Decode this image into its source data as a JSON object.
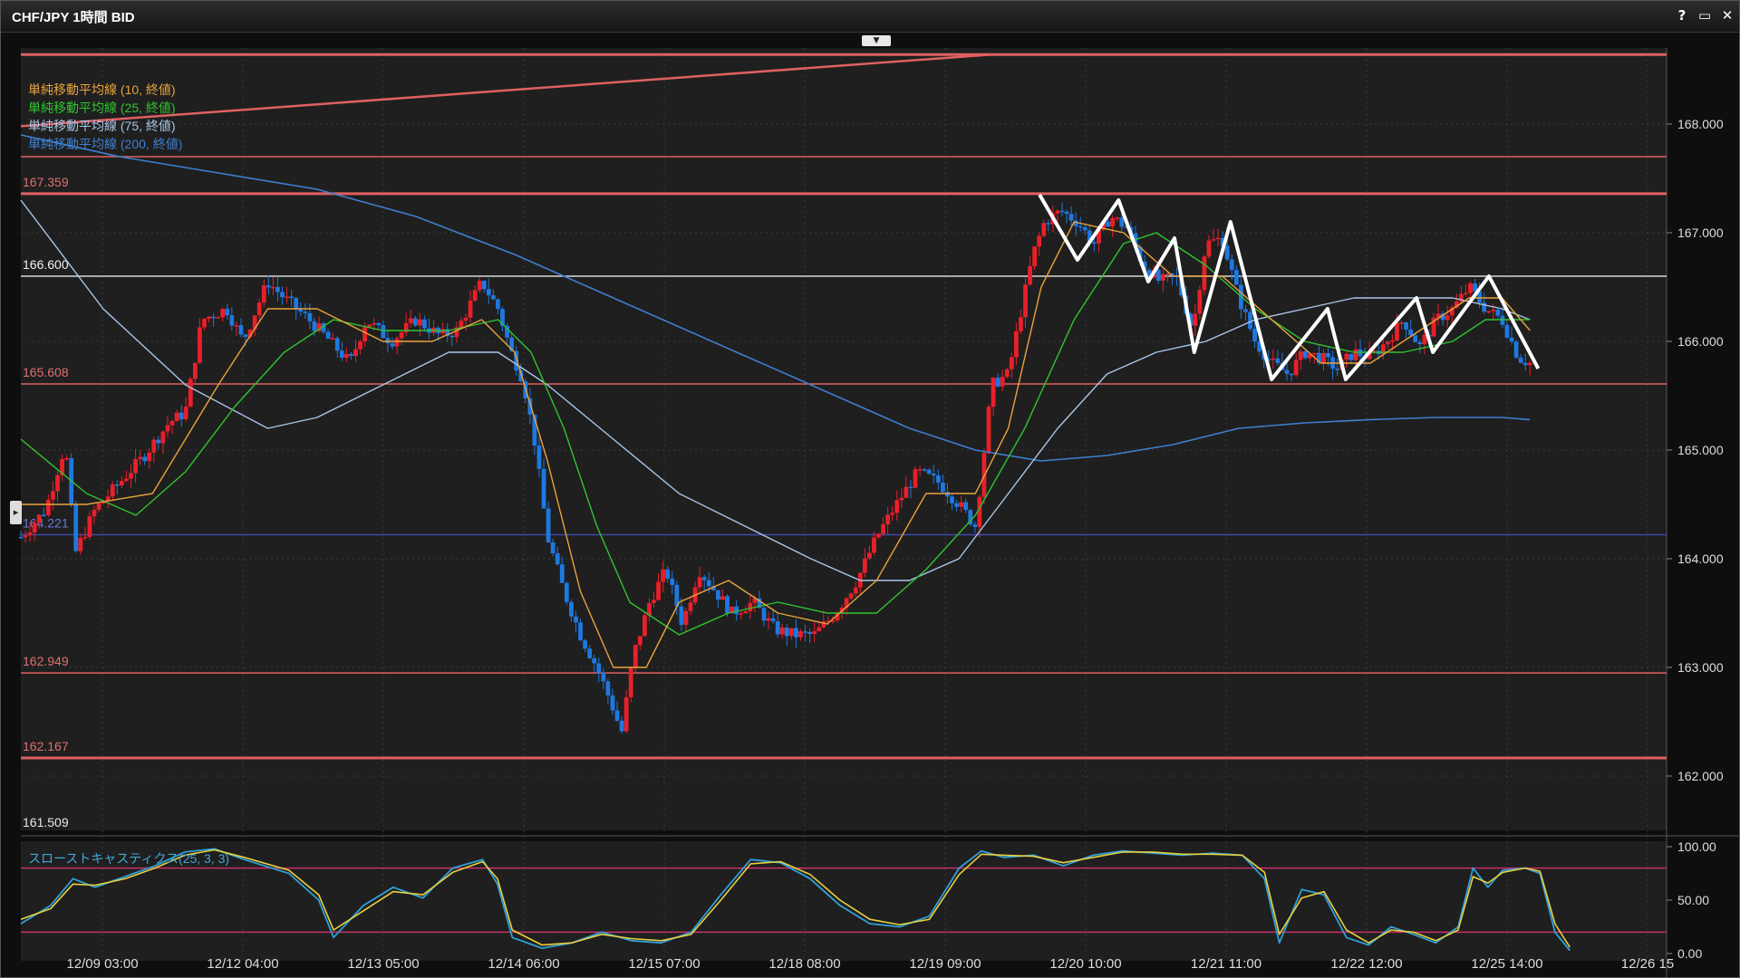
{
  "window": {
    "title": "CHF/JPY 1時間 BID",
    "help_label": "?",
    "maximize_label": "▭",
    "close_label": "✕"
  },
  "legend": [
    {
      "label": "単純移動平均線 (10, 終値)",
      "color": "#e8a33c"
    },
    {
      "label": "単純移動平均線 (25, 終値)",
      "color": "#2fc42f"
    },
    {
      "label": "単純移動平均線 (75, 終値)",
      "color": "#a9c6e8"
    },
    {
      "label": "単純移動平均線 (200, 終値)",
      "color": "#3f7fd0"
    }
  ],
  "colors": {
    "background": "#1f1f1f",
    "up_candle": "#e8202a",
    "down_candle": "#1f78e0",
    "horizontal_line": "#e06060",
    "horizontal_line_white": "#d8d8d8",
    "horizontal_line_blue": "#3a4aa8",
    "stoch_k": "#2fa0d8",
    "stoch_d": "#e8d040",
    "stoch_band": "#c8306a",
    "pattern": "#ffffff"
  },
  "chart_data": {
    "type": "candlestick",
    "symbol": "CHF/JPY",
    "timeframe": "1時間",
    "x_ticks": [
      "12/09 03:00",
      "12/12 04:00",
      "12/13 05:00",
      "12/14 06:00",
      "12/15 07:00",
      "12/18 08:00",
      "12/19 09:00",
      "12/20 10:00",
      "12/21 11:00",
      "12/22 12:00",
      "12/25 14:00",
      "12/26 15"
    ],
    "y_ticks": [
      "168.000",
      "167.000",
      "166.000",
      "165.000",
      "164.000",
      "163.000",
      "162.000"
    ],
    "ylim": [
      161.5,
      168.7
    ],
    "horizontal_lines": [
      {
        "price": 168.64,
        "style": "red"
      },
      {
        "price": 167.7,
        "style": "red-thin"
      },
      {
        "price": 167.359,
        "label": "167.359",
        "style": "red"
      },
      {
        "price": 166.6,
        "label": "166.600",
        "style": "white"
      },
      {
        "price": 165.608,
        "label": "165.608",
        "style": "red-thin"
      },
      {
        "price": 164.221,
        "label": "164.221",
        "style": "blue"
      },
      {
        "price": 162.949,
        "label": "162.949",
        "style": "red-thin"
      },
      {
        "price": 162.167,
        "label": "162.167",
        "style": "red"
      }
    ],
    "bottom_label": "161.509",
    "trendline": {
      "x": [
        0.0,
        0.59
      ],
      "price": [
        167.98,
        168.64
      ]
    },
    "close_path": [
      [
        0.0,
        164.2
      ],
      [
        0.015,
        164.45
      ],
      [
        0.027,
        165.05
      ],
      [
        0.033,
        164.05
      ],
      [
        0.045,
        164.45
      ],
      [
        0.06,
        164.7
      ],
      [
        0.075,
        164.95
      ],
      [
        0.09,
        165.25
      ],
      [
        0.1,
        165.35
      ],
      [
        0.11,
        166.2
      ],
      [
        0.125,
        166.3
      ],
      [
        0.135,
        166.0
      ],
      [
        0.15,
        166.55
      ],
      [
        0.16,
        166.4
      ],
      [
        0.175,
        166.2
      ],
      [
        0.185,
        166.05
      ],
      [
        0.2,
        165.8
      ],
      [
        0.21,
        166.2
      ],
      [
        0.225,
        166.0
      ],
      [
        0.24,
        166.2
      ],
      [
        0.255,
        166.05
      ],
      [
        0.265,
        166.1
      ],
      [
        0.28,
        166.55
      ],
      [
        0.29,
        166.3
      ],
      [
        0.298,
        165.9
      ],
      [
        0.305,
        165.65
      ],
      [
        0.312,
        165.1
      ],
      [
        0.32,
        164.2
      ],
      [
        0.33,
        163.7
      ],
      [
        0.34,
        163.3
      ],
      [
        0.35,
        163.0
      ],
      [
        0.358,
        162.7
      ],
      [
        0.365,
        162.4
      ],
      [
        0.372,
        163.1
      ],
      [
        0.382,
        163.6
      ],
      [
        0.392,
        163.9
      ],
      [
        0.402,
        163.4
      ],
      [
        0.412,
        163.9
      ],
      [
        0.422,
        163.7
      ],
      [
        0.432,
        163.5
      ],
      [
        0.445,
        163.6
      ],
      [
        0.458,
        163.35
      ],
      [
        0.47,
        163.3
      ],
      [
        0.482,
        163.3
      ],
      [
        0.495,
        163.5
      ],
      [
        0.508,
        163.8
      ],
      [
        0.52,
        164.2
      ],
      [
        0.532,
        164.5
      ],
      [
        0.545,
        164.8
      ],
      [
        0.558,
        164.7
      ],
      [
        0.57,
        164.5
      ],
      [
        0.58,
        164.3
      ],
      [
        0.59,
        165.6
      ],
      [
        0.6,
        165.7
      ],
      [
        0.608,
        166.3
      ],
      [
        0.615,
        166.8
      ],
      [
        0.622,
        167.1
      ],
      [
        0.632,
        167.2
      ],
      [
        0.642,
        167.1
      ],
      [
        0.652,
        166.9
      ],
      [
        0.662,
        167.15
      ],
      [
        0.672,
        167.05
      ],
      [
        0.682,
        166.7
      ],
      [
        0.692,
        166.55
      ],
      [
        0.702,
        166.6
      ],
      [
        0.712,
        166.1
      ],
      [
        0.72,
        166.9
      ],
      [
        0.73,
        166.95
      ],
      [
        0.74,
        166.4
      ],
      [
        0.75,
        166.0
      ],
      [
        0.76,
        165.8
      ],
      [
        0.77,
        165.7
      ],
      [
        0.78,
        165.9
      ],
      [
        0.79,
        165.85
      ],
      [
        0.8,
        165.75
      ],
      [
        0.81,
        165.9
      ],
      [
        0.82,
        165.85
      ],
      [
        0.83,
        166.0
      ],
      [
        0.84,
        166.2
      ],
      [
        0.85,
        165.95
      ],
      [
        0.86,
        166.2
      ],
      [
        0.87,
        166.3
      ],
      [
        0.88,
        166.5
      ],
      [
        0.89,
        166.3
      ],
      [
        0.9,
        166.2
      ],
      [
        0.91,
        165.85
      ],
      [
        0.917,
        165.8
      ]
    ],
    "sma_10": [
      [
        0.0,
        164.5
      ],
      [
        0.04,
        164.5
      ],
      [
        0.08,
        164.6
      ],
      [
        0.12,
        165.6
      ],
      [
        0.15,
        166.3
      ],
      [
        0.18,
        166.3
      ],
      [
        0.22,
        166.0
      ],
      [
        0.25,
        166.0
      ],
      [
        0.28,
        166.2
      ],
      [
        0.3,
        165.9
      ],
      [
        0.32,
        164.9
      ],
      [
        0.34,
        163.7
      ],
      [
        0.36,
        163.0
      ],
      [
        0.38,
        163.0
      ],
      [
        0.4,
        163.6
      ],
      [
        0.43,
        163.8
      ],
      [
        0.46,
        163.5
      ],
      [
        0.49,
        163.4
      ],
      [
        0.52,
        163.8
      ],
      [
        0.55,
        164.6
      ],
      [
        0.58,
        164.6
      ],
      [
        0.6,
        165.2
      ],
      [
        0.62,
        166.5
      ],
      [
        0.64,
        167.1
      ],
      [
        0.67,
        167.0
      ],
      [
        0.7,
        166.6
      ],
      [
        0.73,
        166.6
      ],
      [
        0.76,
        166.2
      ],
      [
        0.79,
        165.8
      ],
      [
        0.82,
        165.8
      ],
      [
        0.85,
        166.1
      ],
      [
        0.88,
        166.4
      ],
      [
        0.9,
        166.4
      ],
      [
        0.917,
        166.1
      ]
    ],
    "sma_25": [
      [
        0.0,
        165.1
      ],
      [
        0.04,
        164.6
      ],
      [
        0.07,
        164.4
      ],
      [
        0.1,
        164.8
      ],
      [
        0.13,
        165.4
      ],
      [
        0.16,
        165.9
      ],
      [
        0.19,
        166.2
      ],
      [
        0.22,
        166.1
      ],
      [
        0.26,
        166.1
      ],
      [
        0.29,
        166.2
      ],
      [
        0.31,
        165.9
      ],
      [
        0.33,
        165.2
      ],
      [
        0.35,
        164.3
      ],
      [
        0.37,
        163.6
      ],
      [
        0.4,
        163.3
      ],
      [
        0.43,
        163.5
      ],
      [
        0.46,
        163.6
      ],
      [
        0.49,
        163.5
      ],
      [
        0.52,
        163.5
      ],
      [
        0.55,
        163.9
      ],
      [
        0.58,
        164.4
      ],
      [
        0.61,
        165.2
      ],
      [
        0.64,
        166.2
      ],
      [
        0.67,
        166.9
      ],
      [
        0.69,
        167.0
      ],
      [
        0.72,
        166.7
      ],
      [
        0.75,
        166.3
      ],
      [
        0.78,
        166.0
      ],
      [
        0.81,
        165.9
      ],
      [
        0.84,
        165.9
      ],
      [
        0.87,
        166.0
      ],
      [
        0.89,
        166.2
      ],
      [
        0.917,
        166.2
      ]
    ],
    "sma_75": [
      [
        0.0,
        167.3
      ],
      [
        0.05,
        166.3
      ],
      [
        0.1,
        165.6
      ],
      [
        0.15,
        165.2
      ],
      [
        0.18,
        165.3
      ],
      [
        0.22,
        165.6
      ],
      [
        0.26,
        165.9
      ],
      [
        0.29,
        165.9
      ],
      [
        0.32,
        165.6
      ],
      [
        0.36,
        165.1
      ],
      [
        0.4,
        164.6
      ],
      [
        0.44,
        164.3
      ],
      [
        0.48,
        164.0
      ],
      [
        0.51,
        163.8
      ],
      [
        0.54,
        163.8
      ],
      [
        0.57,
        164.0
      ],
      [
        0.6,
        164.6
      ],
      [
        0.63,
        165.2
      ],
      [
        0.66,
        165.7
      ],
      [
        0.69,
        165.9
      ],
      [
        0.72,
        166.0
      ],
      [
        0.75,
        166.2
      ],
      [
        0.78,
        166.3
      ],
      [
        0.81,
        166.4
      ],
      [
        0.84,
        166.4
      ],
      [
        0.87,
        166.4
      ],
      [
        0.9,
        166.3
      ],
      [
        0.917,
        166.2
      ]
    ],
    "sma_200": [
      [
        0.0,
        167.9
      ],
      [
        0.06,
        167.7
      ],
      [
        0.12,
        167.55
      ],
      [
        0.18,
        167.4
      ],
      [
        0.24,
        167.15
      ],
      [
        0.3,
        166.8
      ],
      [
        0.36,
        166.4
      ],
      [
        0.42,
        166.0
      ],
      [
        0.48,
        165.6
      ],
      [
        0.54,
        165.2
      ],
      [
        0.58,
        165.0
      ],
      [
        0.62,
        164.9
      ],
      [
        0.66,
        164.95
      ],
      [
        0.7,
        165.05
      ],
      [
        0.74,
        165.2
      ],
      [
        0.78,
        165.25
      ],
      [
        0.82,
        165.28
      ],
      [
        0.86,
        165.3
      ],
      [
        0.9,
        165.3
      ],
      [
        0.917,
        165.28
      ]
    ],
    "pattern_lines": [
      [
        [
          0.619,
          167.35
        ],
        [
          0.642,
          166.75
        ],
        [
          0.667,
          167.3
        ],
        [
          0.685,
          166.55
        ],
        [
          0.701,
          166.95
        ],
        [
          0.713,
          165.9
        ],
        [
          0.735,
          167.1
        ],
        [
          0.76,
          165.65
        ],
        [
          0.794,
          166.3
        ],
        [
          0.805,
          165.65
        ],
        [
          0.848,
          166.4
        ],
        [
          0.858,
          165.9
        ],
        [
          0.892,
          166.6
        ],
        [
          0.922,
          165.75
        ]
      ]
    ],
    "oscillator": {
      "name": "スローストキャスティクス(25, 3, 3)",
      "y_ticks": [
        "100.00",
        "50.00",
        "0.00"
      ],
      "ylim": [
        0,
        100
      ],
      "bands": [
        80,
        20
      ],
      "k": [
        [
          0.0,
          28
        ],
        [
          0.02,
          45
        ],
        [
          0.035,
          70
        ],
        [
          0.05,
          62
        ],
        [
          0.07,
          72
        ],
        [
          0.09,
          82
        ],
        [
          0.11,
          95
        ],
        [
          0.13,
          98
        ],
        [
          0.15,
          88
        ],
        [
          0.18,
          75
        ],
        [
          0.2,
          50
        ],
        [
          0.21,
          15
        ],
        [
          0.23,
          45
        ],
        [
          0.25,
          62
        ],
        [
          0.27,
          52
        ],
        [
          0.29,
          80
        ],
        [
          0.31,
          88
        ],
        [
          0.32,
          65
        ],
        [
          0.33,
          15
        ],
        [
          0.35,
          5
        ],
        [
          0.37,
          10
        ],
        [
          0.39,
          20
        ],
        [
          0.41,
          12
        ],
        [
          0.43,
          10
        ],
        [
          0.45,
          20
        ],
        [
          0.47,
          55
        ],
        [
          0.49,
          88
        ],
        [
          0.51,
          85
        ],
        [
          0.53,
          70
        ],
        [
          0.55,
          45
        ],
        [
          0.57,
          28
        ],
        [
          0.59,
          25
        ],
        [
          0.61,
          35
        ],
        [
          0.63,
          80
        ],
        [
          0.645,
          96
        ],
        [
          0.66,
          90
        ],
        [
          0.68,
          92
        ],
        [
          0.7,
          82
        ],
        [
          0.72,
          92
        ],
        [
          0.74,
          96
        ],
        [
          0.76,
          94
        ],
        [
          0.78,
          92
        ],
        [
          0.8,
          94
        ],
        [
          0.82,
          92
        ],
        [
          0.835,
          70
        ],
        [
          0.845,
          10
        ],
        [
          0.86,
          60
        ],
        [
          0.875,
          55
        ],
        [
          0.89,
          15
        ],
        [
          0.905,
          8
        ],
        [
          0.92,
          25
        ],
        [
          0.935,
          18
        ],
        [
          0.95,
          10
        ],
        [
          0.965,
          25
        ],
        [
          0.975,
          80
        ],
        [
          0.985,
          62
        ],
        [
          0.995,
          78
        ],
        [
          1.01,
          80
        ],
        [
          1.02,
          75
        ],
        [
          1.03,
          20
        ],
        [
          1.04,
          3
        ]
      ],
      "d": [
        [
          0.0,
          32
        ],
        [
          0.02,
          42
        ],
        [
          0.035,
          65
        ],
        [
          0.05,
          64
        ],
        [
          0.07,
          70
        ],
        [
          0.09,
          80
        ],
        [
          0.11,
          92
        ],
        [
          0.13,
          97
        ],
        [
          0.15,
          90
        ],
        [
          0.18,
          78
        ],
        [
          0.2,
          55
        ],
        [
          0.21,
          22
        ],
        [
          0.23,
          40
        ],
        [
          0.25,
          58
        ],
        [
          0.27,
          55
        ],
        [
          0.29,
          76
        ],
        [
          0.31,
          86
        ],
        [
          0.32,
          70
        ],
        [
          0.33,
          22
        ],
        [
          0.35,
          8
        ],
        [
          0.37,
          10
        ],
        [
          0.39,
          18
        ],
        [
          0.41,
          14
        ],
        [
          0.43,
          12
        ],
        [
          0.45,
          18
        ],
        [
          0.47,
          50
        ],
        [
          0.49,
          84
        ],
        [
          0.51,
          86
        ],
        [
          0.53,
          74
        ],
        [
          0.55,
          50
        ],
        [
          0.57,
          32
        ],
        [
          0.59,
          27
        ],
        [
          0.61,
          32
        ],
        [
          0.63,
          74
        ],
        [
          0.645,
          93
        ],
        [
          0.66,
          92
        ],
        [
          0.68,
          91
        ],
        [
          0.7,
          85
        ],
        [
          0.72,
          90
        ],
        [
          0.74,
          95
        ],
        [
          0.76,
          95
        ],
        [
          0.78,
          93
        ],
        [
          0.8,
          93
        ],
        [
          0.82,
          92
        ],
        [
          0.835,
          76
        ],
        [
          0.845,
          18
        ],
        [
          0.86,
          52
        ],
        [
          0.875,
          58
        ],
        [
          0.89,
          22
        ],
        [
          0.905,
          10
        ],
        [
          0.92,
          22
        ],
        [
          0.935,
          20
        ],
        [
          0.95,
          12
        ],
        [
          0.965,
          22
        ],
        [
          0.975,
          72
        ],
        [
          0.985,
          66
        ],
        [
          0.995,
          76
        ],
        [
          1.01,
          80
        ],
        [
          1.02,
          77
        ],
        [
          1.03,
          28
        ],
        [
          1.04,
          6
        ]
      ]
    }
  }
}
